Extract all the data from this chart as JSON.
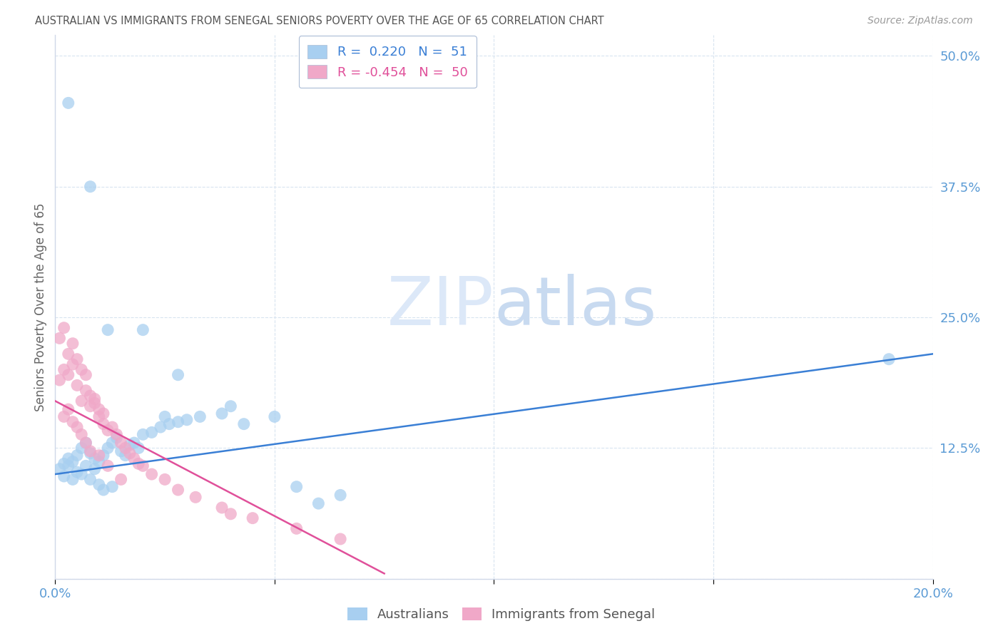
{
  "title": "AUSTRALIAN VS IMMIGRANTS FROM SENEGAL SENIORS POVERTY OVER THE AGE OF 65 CORRELATION CHART",
  "source": "Source: ZipAtlas.com",
  "ylabel_label": "Seniors Poverty Over the Age of 65",
  "xlim": [
    0.0,
    0.2
  ],
  "ylim": [
    0.0,
    0.52
  ],
  "aus_color": "#a8cff0",
  "sen_color": "#f0a8c8",
  "aus_line_color": "#3a7fd5",
  "sen_line_color": "#e0509a",
  "background_color": "#ffffff",
  "title_color": "#555555",
  "source_color": "#999999",
  "tick_color": "#5b9bd5",
  "grid_color": "#d8e4f0",
  "watermark_color": "#dce8f8",
  "aus_x": [
    0.001,
    0.002,
    0.002,
    0.003,
    0.003,
    0.004,
    0.004,
    0.005,
    0.005,
    0.006,
    0.006,
    0.007,
    0.007,
    0.008,
    0.008,
    0.009,
    0.009,
    0.01,
    0.01,
    0.011,
    0.011,
    0.012,
    0.013,
    0.013,
    0.014,
    0.015,
    0.016,
    0.017,
    0.018,
    0.019,
    0.02,
    0.022,
    0.024,
    0.026,
    0.028,
    0.03,
    0.033,
    0.038,
    0.043,
    0.05,
    0.028,
    0.055,
    0.065,
    0.02,
    0.025,
    0.04,
    0.003,
    0.008,
    0.012,
    0.19,
    0.06
  ],
  "aus_y": [
    0.105,
    0.11,
    0.098,
    0.115,
    0.108,
    0.112,
    0.095,
    0.118,
    0.102,
    0.125,
    0.1,
    0.13,
    0.108,
    0.12,
    0.095,
    0.115,
    0.105,
    0.112,
    0.09,
    0.118,
    0.085,
    0.125,
    0.13,
    0.088,
    0.135,
    0.122,
    0.118,
    0.128,
    0.13,
    0.125,
    0.138,
    0.14,
    0.145,
    0.148,
    0.15,
    0.152,
    0.155,
    0.158,
    0.148,
    0.155,
    0.195,
    0.088,
    0.08,
    0.238,
    0.155,
    0.165,
    0.455,
    0.375,
    0.238,
    0.21,
    0.072
  ],
  "sen_x": [
    0.001,
    0.001,
    0.002,
    0.002,
    0.003,
    0.003,
    0.004,
    0.004,
    0.005,
    0.005,
    0.006,
    0.006,
    0.007,
    0.007,
    0.008,
    0.008,
    0.009,
    0.009,
    0.01,
    0.01,
    0.011,
    0.011,
    0.012,
    0.013,
    0.014,
    0.015,
    0.016,
    0.017,
    0.018,
    0.019,
    0.02,
    0.022,
    0.025,
    0.028,
    0.032,
    0.038,
    0.045,
    0.055,
    0.065,
    0.002,
    0.003,
    0.004,
    0.005,
    0.006,
    0.007,
    0.008,
    0.01,
    0.012,
    0.015,
    0.04
  ],
  "sen_y": [
    0.19,
    0.23,
    0.2,
    0.24,
    0.195,
    0.215,
    0.205,
    0.225,
    0.185,
    0.21,
    0.2,
    0.17,
    0.18,
    0.195,
    0.175,
    0.165,
    0.168,
    0.172,
    0.162,
    0.155,
    0.158,
    0.148,
    0.142,
    0.145,
    0.138,
    0.13,
    0.125,
    0.12,
    0.115,
    0.11,
    0.108,
    0.1,
    0.095,
    0.085,
    0.078,
    0.068,
    0.058,
    0.048,
    0.038,
    0.155,
    0.162,
    0.15,
    0.145,
    0.138,
    0.13,
    0.122,
    0.118,
    0.108,
    0.095,
    0.062
  ],
  "aus_line_x0": 0.0,
  "aus_line_y0": 0.1,
  "aus_line_x1": 0.2,
  "aus_line_y1": 0.215,
  "sen_line_x0": 0.0,
  "sen_line_y0": 0.17,
  "sen_line_x1": 0.075,
  "sen_line_y1": 0.005
}
